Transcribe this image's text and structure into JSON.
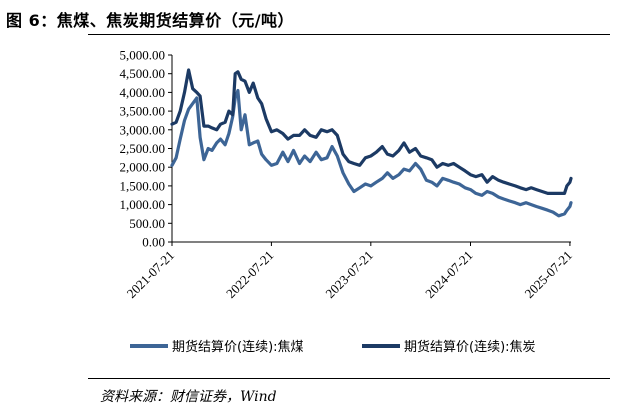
{
  "figure": {
    "title": "图 6：焦煤、焦炭期货结算价（元/吨）",
    "source": "资料来源：财信证券，Wind"
  },
  "chart_data": {
    "type": "line",
    "title": "",
    "xlabel": "",
    "ylabel": "",
    "ylim": [
      0,
      5000
    ],
    "y_ticks": [
      "0.00",
      "500.00",
      "1,000.00",
      "1,500.00",
      "2,000.00",
      "2,500.00",
      "3,000.00",
      "3,500.00",
      "4,000.00",
      "4,500.00",
      "5,000.00"
    ],
    "y_tick_values": [
      0,
      500,
      1000,
      1500,
      2000,
      2500,
      3000,
      3500,
      4000,
      4500,
      5000
    ],
    "x_ticks": [
      "2021-07-21",
      "2022-07-21",
      "2023-07-21",
      "2024-07-21",
      "2025-07-21"
    ],
    "x_range": [
      "2021-07-21",
      "2025-07-25"
    ],
    "grid": false,
    "legend_position": "bottom",
    "series": [
      {
        "name": "期货结算价(连续):焦煤",
        "color": "#3d6596",
        "x": [
          "2021-07-21",
          "2021-08-05",
          "2021-08-20",
          "2021-09-05",
          "2021-09-20",
          "2021-10-05",
          "2021-10-20",
          "2021-11-01",
          "2021-11-15",
          "2021-12-01",
          "2021-12-15",
          "2022-01-01",
          "2022-01-15",
          "2022-02-01",
          "2022-02-15",
          "2022-03-01",
          "2022-03-10",
          "2022-03-20",
          "2022-04-01",
          "2022-04-15",
          "2022-05-01",
          "2022-05-15",
          "2022-06-01",
          "2022-06-15",
          "2022-07-01",
          "2022-07-21",
          "2022-08-10",
          "2022-09-01",
          "2022-09-20",
          "2022-10-10",
          "2022-11-01",
          "2022-11-20",
          "2022-12-10",
          "2023-01-01",
          "2023-01-20",
          "2023-02-10",
          "2023-03-01",
          "2023-03-20",
          "2023-04-10",
          "2023-05-01",
          "2023-05-20",
          "2023-06-10",
          "2023-07-01",
          "2023-07-21",
          "2023-08-10",
          "2023-09-01",
          "2023-09-20",
          "2023-10-10",
          "2023-11-01",
          "2023-11-20",
          "2023-12-10",
          "2024-01-01",
          "2024-01-20",
          "2024-02-10",
          "2024-03-01",
          "2024-03-20",
          "2024-04-10",
          "2024-05-01",
          "2024-05-20",
          "2024-06-10",
          "2024-07-01",
          "2024-07-21",
          "2024-08-10",
          "2024-09-01",
          "2024-09-20",
          "2024-10-10",
          "2024-11-01",
          "2024-11-20",
          "2024-12-10",
          "2025-01-01",
          "2025-01-20",
          "2025-02-10",
          "2025-03-01",
          "2025-03-20",
          "2025-04-10",
          "2025-05-01",
          "2025-05-20",
          "2025-06-10",
          "2025-07-01",
          "2025-07-10",
          "2025-07-21",
          "2025-07-25"
        ],
        "values": [
          2050,
          2250,
          2750,
          3250,
          3550,
          3700,
          3850,
          2800,
          2200,
          2500,
          2450,
          2650,
          2750,
          2600,
          2900,
          3350,
          3850,
          4050,
          3000,
          3400,
          2600,
          2650,
          2700,
          2350,
          2200,
          2050,
          2100,
          2400,
          2150,
          2450,
          2100,
          2300,
          2150,
          2400,
          2200,
          2250,
          2550,
          2300,
          1850,
          1550,
          1350,
          1450,
          1550,
          1500,
          1600,
          1700,
          1850,
          1700,
          1800,
          1950,
          1900,
          2100,
          1950,
          1650,
          1600,
          1500,
          1700,
          1650,
          1600,
          1550,
          1450,
          1400,
          1300,
          1250,
          1350,
          1300,
          1200,
          1150,
          1100,
          1050,
          1000,
          1050,
          1000,
          950,
          900,
          850,
          800,
          700,
          750,
          850,
          950,
          1050
        ]
      },
      {
        "name": "期货结算价(连续):焦炭",
        "color": "#1c3a64",
        "x": [
          "2021-07-21",
          "2021-08-05",
          "2021-08-20",
          "2021-09-05",
          "2021-09-20",
          "2021-10-05",
          "2021-10-20",
          "2021-11-01",
          "2021-11-15",
          "2021-12-01",
          "2021-12-15",
          "2022-01-01",
          "2022-01-15",
          "2022-02-01",
          "2022-02-15",
          "2022-03-01",
          "2022-03-10",
          "2022-03-20",
          "2022-04-01",
          "2022-04-15",
          "2022-05-01",
          "2022-05-15",
          "2022-06-01",
          "2022-06-15",
          "2022-07-01",
          "2022-07-21",
          "2022-08-10",
          "2022-09-01",
          "2022-09-20",
          "2022-10-10",
          "2022-11-01",
          "2022-11-20",
          "2022-12-10",
          "2023-01-01",
          "2023-01-20",
          "2023-02-10",
          "2023-03-01",
          "2023-03-20",
          "2023-04-10",
          "2023-05-01",
          "2023-05-20",
          "2023-06-10",
          "2023-07-01",
          "2023-07-21",
          "2023-08-10",
          "2023-09-01",
          "2023-09-20",
          "2023-10-10",
          "2023-11-01",
          "2023-11-20",
          "2023-12-10",
          "2024-01-01",
          "2024-01-20",
          "2024-02-10",
          "2024-03-01",
          "2024-03-20",
          "2024-04-10",
          "2024-05-01",
          "2024-05-20",
          "2024-06-10",
          "2024-07-01",
          "2024-07-21",
          "2024-08-10",
          "2024-09-01",
          "2024-09-20",
          "2024-10-10",
          "2024-11-01",
          "2024-11-20",
          "2024-12-10",
          "2025-01-01",
          "2025-01-20",
          "2025-02-10",
          "2025-03-01",
          "2025-03-20",
          "2025-04-10",
          "2025-05-01",
          "2025-05-20",
          "2025-06-10",
          "2025-07-01",
          "2025-07-10",
          "2025-07-21",
          "2025-07-25"
        ],
        "values": [
          3150,
          3200,
          3500,
          4000,
          4600,
          4100,
          4000,
          3900,
          3100,
          3100,
          3050,
          3000,
          3150,
          3200,
          3500,
          3400,
          4500,
          4550,
          4350,
          4300,
          4000,
          4250,
          3850,
          3700,
          3300,
          2950,
          3000,
          2900,
          2750,
          2850,
          2850,
          3000,
          2850,
          2800,
          3000,
          2950,
          3000,
          2850,
          2350,
          2150,
          2100,
          2050,
          2250,
          2300,
          2400,
          2550,
          2350,
          2300,
          2450,
          2650,
          2400,
          2500,
          2300,
          2250,
          2200,
          2000,
          2100,
          2050,
          2100,
          2000,
          1900,
          1800,
          1750,
          1800,
          1600,
          1750,
          1650,
          1600,
          1550,
          1500,
          1450,
          1400,
          1450,
          1400,
          1350,
          1300,
          1300,
          1300,
          1300,
          1500,
          1600,
          1700
        ]
      }
    ]
  }
}
